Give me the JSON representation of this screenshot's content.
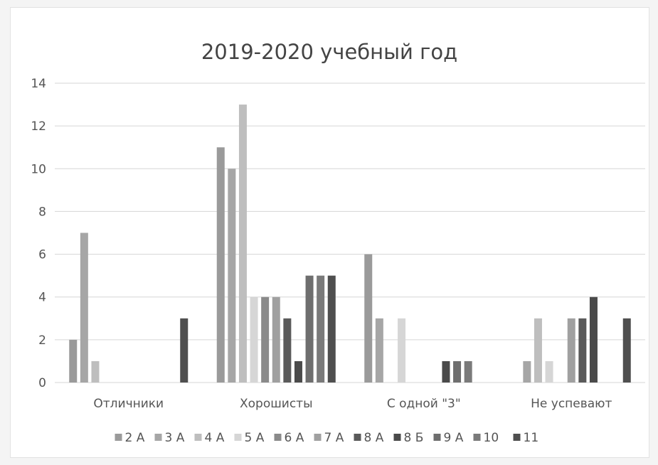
{
  "chart_data": {
    "type": "bar",
    "title": "2019-2020 учебный год",
    "categories": [
      "Отличники",
      "Хорошисты",
      "С одной \"3\"",
      "Не успевают"
    ],
    "ylim": [
      0,
      14
    ],
    "yticks": [
      "0",
      "2",
      "4",
      "6",
      "8",
      "10",
      "12",
      "14"
    ],
    "grid": true,
    "legend_position": "bottom",
    "series": [
      {
        "name": "2 А",
        "color": "#9a9a9a",
        "values": [
          2,
          11,
          6,
          0
        ]
      },
      {
        "name": "3 А",
        "color": "#a6a6a6",
        "values": [
          7,
          10,
          3,
          1
        ]
      },
      {
        "name": "4 А",
        "color": "#bebebe",
        "values": [
          1,
          13,
          0,
          3
        ]
      },
      {
        "name": "5 А",
        "color": "#d6d6d6",
        "values": [
          0,
          4,
          3,
          1
        ]
      },
      {
        "name": "6 А",
        "color": "#8a8a8a",
        "values": [
          0,
          4,
          0,
          0
        ]
      },
      {
        "name": "7 А",
        "color": "#a0a0a0",
        "values": [
          0,
          4,
          0,
          3
        ]
      },
      {
        "name": "8 А",
        "color": "#5a5a5a",
        "values": [
          0,
          3,
          0,
          3
        ]
      },
      {
        "name": "8 Б",
        "color": "#4a4a4a",
        "values": [
          0,
          1,
          1,
          4
        ]
      },
      {
        "name": "9 А",
        "color": "#6e6e6e",
        "values": [
          0,
          5,
          1,
          0
        ]
      },
      {
        "name": "10",
        "color": "#7a7a7a",
        "values": [
          0,
          5,
          1,
          0
        ]
      },
      {
        "name": "11",
        "color": "#4f4f4f",
        "values": [
          3,
          5,
          0,
          3
        ]
      }
    ]
  }
}
